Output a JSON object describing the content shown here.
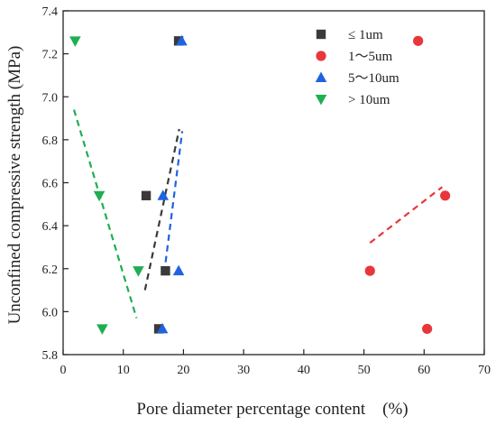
{
  "chart_data": {
    "type": "scatter",
    "title": "",
    "xlabel": "Pore diameter percentage content　(%)",
    "ylabel": "Unconfined compressive strength (MPa)",
    "xlim": [
      0,
      70
    ],
    "ylim": [
      5.8,
      7.4
    ],
    "xticks": [
      0,
      10,
      20,
      30,
      40,
      50,
      60,
      70
    ],
    "yticks": [
      5.8,
      6.0,
      6.2,
      6.4,
      6.6,
      6.8,
      7.0,
      7.2,
      7.4
    ],
    "ytick_labels": [
      "5.8",
      "6.0",
      "6.2",
      "6.4",
      "6.6",
      "6.8",
      "7.0",
      "7.2",
      "7.4"
    ],
    "grid": false,
    "legend_position": "top-right",
    "series": [
      {
        "name": "≤ 1um",
        "marker": "square",
        "color": "#3a3a3a",
        "points": [
          [
            19.2,
            7.26
          ],
          [
            13.8,
            6.54
          ],
          [
            17.0,
            6.19
          ],
          [
            15.9,
            5.92
          ]
        ],
        "trend": [
          [
            13.6,
            6.1
          ],
          [
            19.3,
            6.85
          ]
        ]
      },
      {
        "name": "1〜5um",
        "marker": "circle",
        "color": "#e8373b",
        "points": [
          [
            59.0,
            7.26
          ],
          [
            63.5,
            6.54
          ],
          [
            51.0,
            6.19
          ],
          [
            60.5,
            5.92
          ]
        ],
        "trend": [
          [
            51.0,
            6.32
          ],
          [
            63.0,
            6.58
          ]
        ]
      },
      {
        "name": "5〜10um",
        "marker": "triangle-up",
        "color": "#1f63e0",
        "points": [
          [
            19.7,
            7.26
          ],
          [
            16.6,
            6.54
          ],
          [
            19.2,
            6.19
          ],
          [
            16.5,
            5.92
          ]
        ],
        "trend": [
          [
            16.8,
            6.18
          ],
          [
            19.8,
            6.84
          ]
        ]
      },
      {
        "name": "> 10um",
        "marker": "triangle-down",
        "color": "#1fae52",
        "points": [
          [
            2.0,
            7.26
          ],
          [
            6.0,
            6.54
          ],
          [
            12.5,
            6.19
          ],
          [
            6.5,
            5.92
          ]
        ],
        "trend": [
          [
            1.8,
            6.94
          ],
          [
            12.2,
            5.97
          ]
        ]
      }
    ]
  }
}
